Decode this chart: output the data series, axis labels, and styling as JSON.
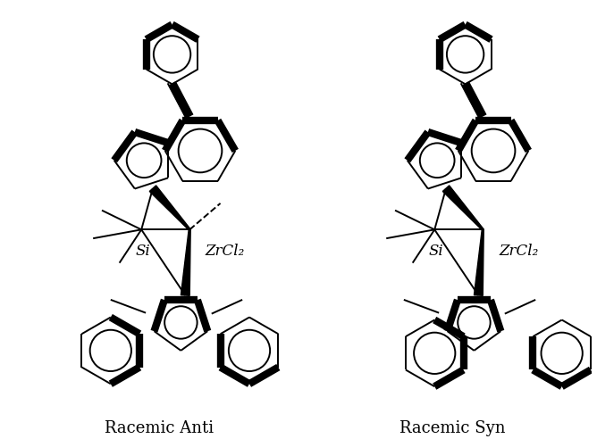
{
  "label_left": "Racemic Anti",
  "label_right": "Racemic Syn",
  "label_si": "Si",
  "label_zrcl2": "ZrCl₂",
  "bg_color": "#ffffff",
  "line_color": "#000000",
  "thick_lw": 6,
  "thin_lw": 1.4,
  "font_size": 12,
  "fig_width": 6.68,
  "fig_height": 4.92,
  "dpi": 100
}
